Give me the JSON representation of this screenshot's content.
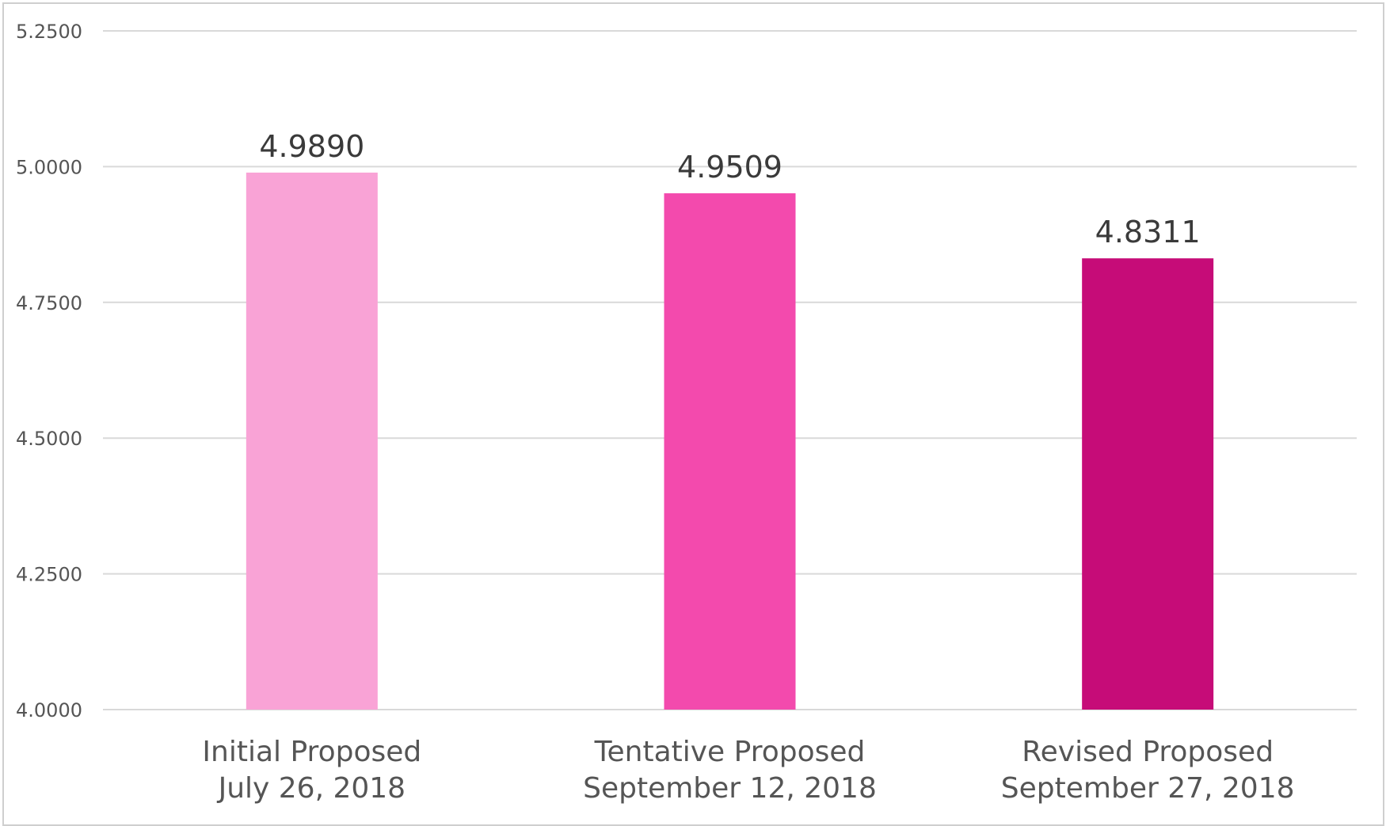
{
  "chart_data": {
    "type": "bar",
    "title": "",
    "xlabel": "",
    "ylabel": "",
    "ylim": [
      4.0,
      5.25
    ],
    "y_ticks": [
      "5.2500",
      "5.0000",
      "4.7500",
      "4.5000",
      "4.2500",
      "4.0000"
    ],
    "y_tick_values": [
      5.25,
      5.0,
      4.75,
      4.5,
      4.25,
      4.0
    ],
    "grid": true,
    "categories": [
      [
        "Initial Proposed",
        "July 26, 2018"
      ],
      [
        "Tentative Proposed",
        "September 12, 2018"
      ],
      [
        "Revised Proposed",
        "September 27, 2018"
      ]
    ],
    "values": [
      4.989,
      4.9509,
      4.8311
    ],
    "value_labels": [
      "4.9890",
      "4.9509",
      "4.8311"
    ],
    "bar_colors": [
      "#f9a3d6",
      "#f34aad",
      "#c60c78"
    ]
  }
}
